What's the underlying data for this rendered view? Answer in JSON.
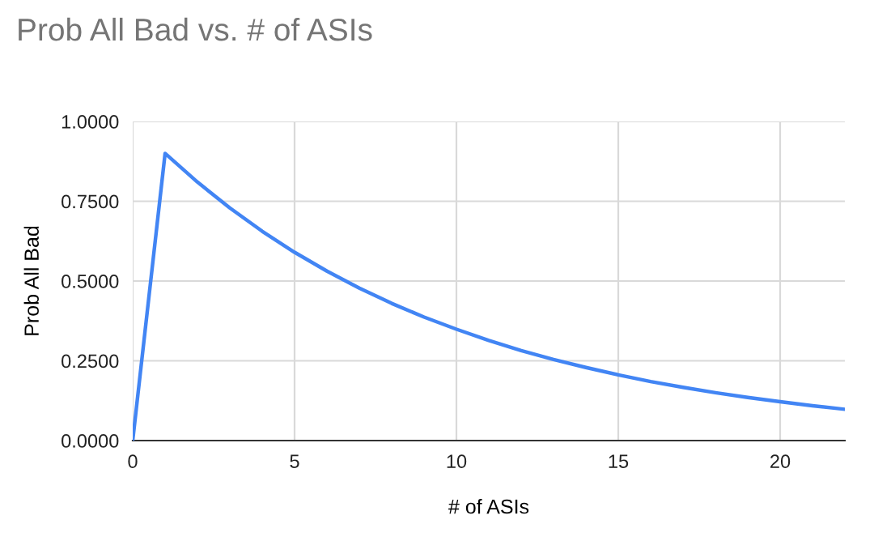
{
  "chart_data": {
    "type": "line",
    "title": "Prob All Bad vs. # of ASIs",
    "xlabel": "# of ASIs",
    "ylabel": "Prob All Bad",
    "x": [
      0,
      1,
      2,
      3,
      4,
      5,
      6,
      7,
      8,
      9,
      10,
      11,
      12,
      13,
      14,
      15,
      16,
      17,
      18,
      19,
      20,
      21,
      22
    ],
    "series": [
      {
        "color": "#4285f4",
        "values": [
          0,
          0.9,
          0.81,
          0.729,
          0.656,
          0.59,
          0.531,
          0.478,
          0.43,
          0.387,
          0.349,
          0.314,
          0.282,
          0.254,
          0.229,
          0.206,
          0.185,
          0.167,
          0.15,
          0.135,
          0.122,
          0.109,
          0.098
        ]
      }
    ],
    "xlim": [
      0,
      22
    ],
    "xticks": [
      0,
      5,
      10,
      15,
      20
    ],
    "ylim": [
      0,
      1
    ],
    "yticks": [
      {
        "value": 0,
        "label": "0.0000"
      },
      {
        "value": 0.25,
        "label": "0.2500"
      },
      {
        "value": 0.5,
        "label": "0.5000"
      },
      {
        "value": 0.75,
        "label": "0.7500"
      },
      {
        "value": 1,
        "label": "1.0000"
      }
    ],
    "grid": true,
    "marker": "none",
    "line_style": "solid"
  }
}
